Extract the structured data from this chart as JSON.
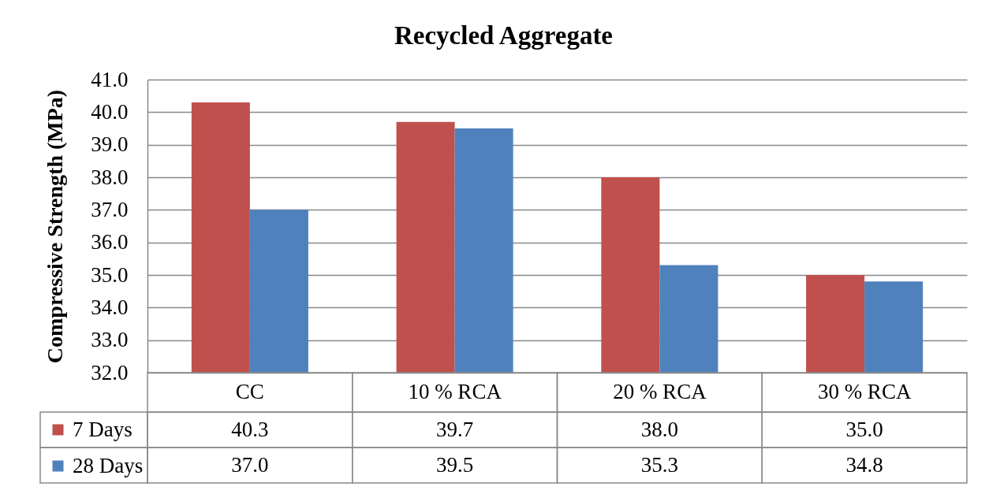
{
  "chart_data": {
    "type": "bar",
    "title": "Recycled Aggregate",
    "ylabel": "Compressive Strength (MPa)",
    "categories": [
      "CC",
      "10 % RCA",
      "20 % RCA",
      "30 % RCA"
    ],
    "series": [
      {
        "name": "7 Days",
        "color": "#c0504d",
        "values": [
          40.3,
          39.7,
          38.0,
          35.0
        ],
        "value_labels": [
          "40.3",
          "39.7",
          "38.0",
          "35.0"
        ]
      },
      {
        "name": "28 Days",
        "color": "#4f81bd",
        "values": [
          37.0,
          39.5,
          35.3,
          34.8
        ],
        "value_labels": [
          "37.0",
          "39.5",
          "35.3",
          "34.8"
        ]
      }
    ],
    "ylim": [
      32,
      41
    ],
    "yticks": [
      {
        "value": 32,
        "label": "32.0"
      },
      {
        "value": 33,
        "label": "33.0"
      },
      {
        "value": 34,
        "label": "34.0"
      },
      {
        "value": 35,
        "label": "35.0"
      },
      {
        "value": 36,
        "label": "36.0"
      },
      {
        "value": 37,
        "label": "37.0"
      },
      {
        "value": 38,
        "label": "38.0"
      },
      {
        "value": 39,
        "label": "39.0"
      },
      {
        "value": 40,
        "label": "40.0"
      },
      {
        "value": 41,
        "label": "41.0"
      }
    ],
    "grid": "y",
    "legend": "bottom"
  }
}
